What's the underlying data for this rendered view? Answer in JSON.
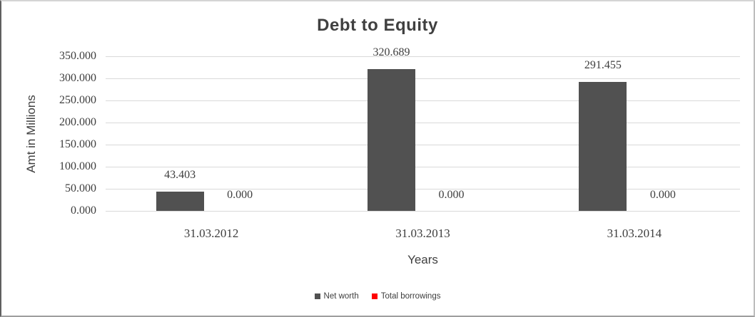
{
  "chart_data": {
    "type": "bar",
    "title": "Debt to Equity",
    "xlabel": "Years",
    "ylabel": "Amt in Millions",
    "categories": [
      "31.03.2012",
      "31.03.2013",
      "31.03.2014"
    ],
    "series": [
      {
        "name": "Net worth",
        "color": "#515151",
        "values": [
          43.403,
          320.689,
          291.455
        ],
        "data_labels": [
          "43.403",
          "320.689",
          "291.455"
        ]
      },
      {
        "name": "Total borrowings",
        "color": "#fe0000",
        "values": [
          0,
          0,
          0
        ],
        "data_labels": [
          "0.000",
          "0.000",
          "0.000"
        ]
      }
    ],
    "ylim": [
      0,
      350
    ],
    "ytick_step": 50,
    "yticks": [
      "350.000",
      "300.000",
      "250.000",
      "200.000",
      "150.000",
      "100.000",
      "50.000",
      "0.000"
    ],
    "grid": true,
    "legend_position": "bottom"
  },
  "colors": {
    "gridline": "#d9d9d9",
    "bar_net_worth": "#515151",
    "bar_total_borrowings": "#fe0000",
    "text": "#3d3d3d",
    "title_text": "#404040",
    "background": "#ffffff"
  }
}
